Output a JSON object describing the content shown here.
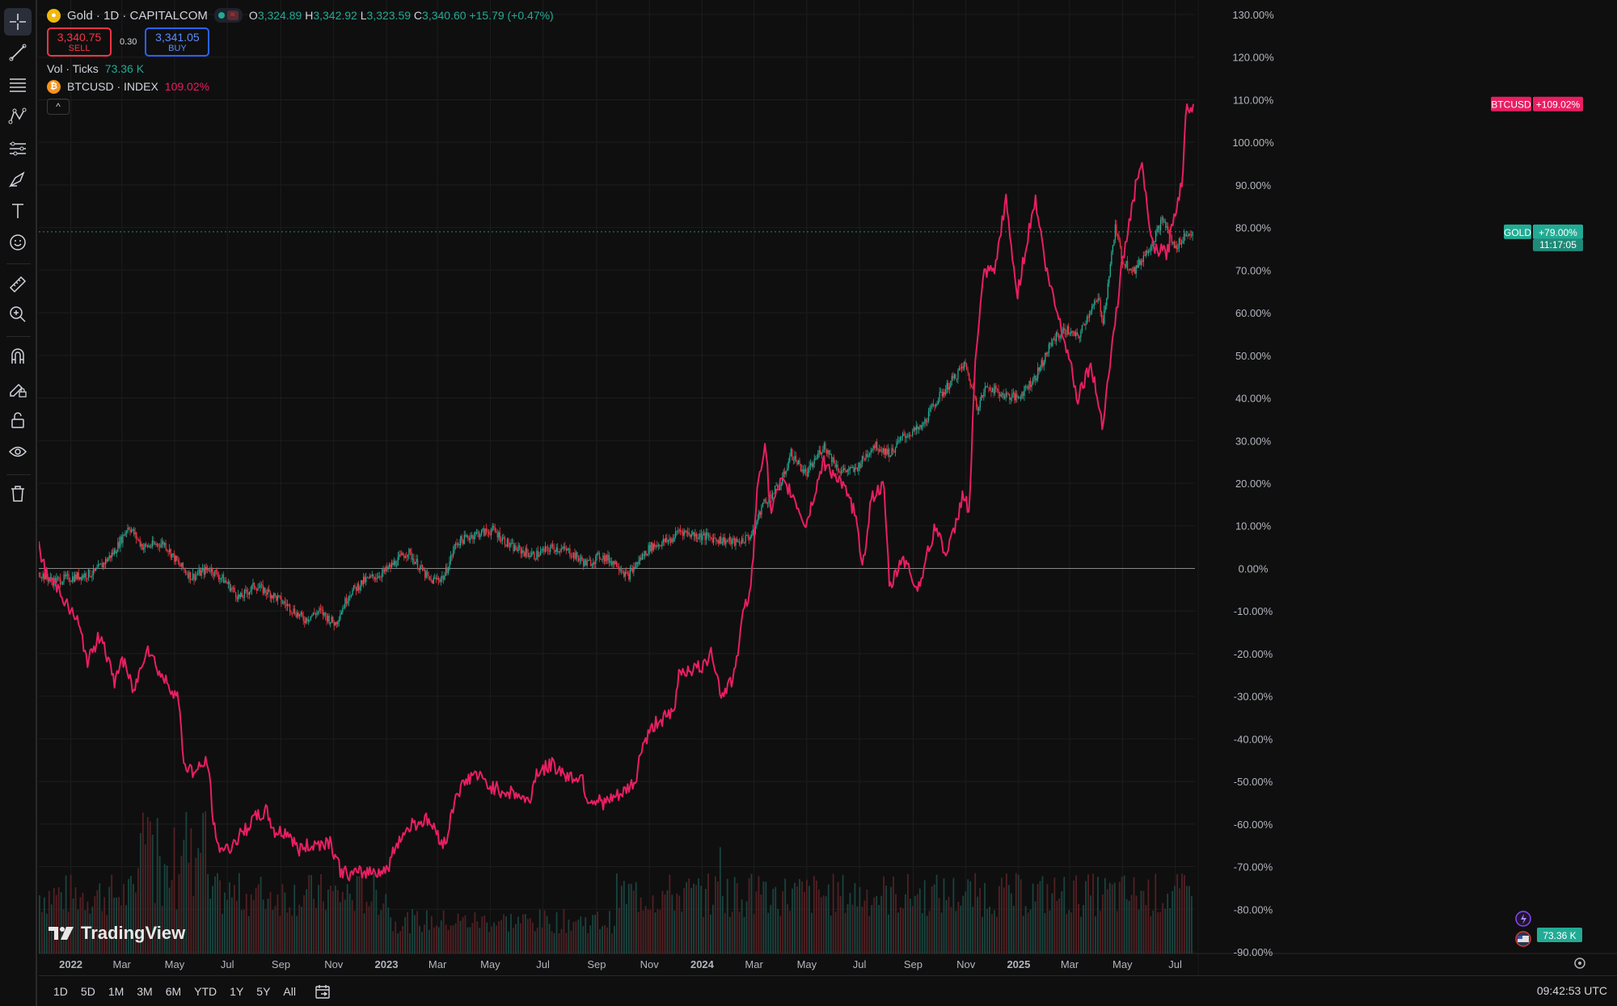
{
  "symbol": {
    "name": "Gold · 1D · CAPITALCOM",
    "open_label": "O",
    "open": "3,324.89",
    "high_label": "H",
    "high": "3,342.92",
    "low_label": "L",
    "low": "3,323.59",
    "close_label": "C",
    "close": "3,340.60",
    "change": "+15.79 (+0.47%)"
  },
  "trade": {
    "sell_price": "3,340.75",
    "sell_label": "SELL",
    "spread": "0.30",
    "buy_price": "3,341.05",
    "buy_label": "BUY"
  },
  "volume": {
    "label": "Vol · Ticks",
    "value": "73.36 K"
  },
  "compare": {
    "label": "BTCUSD · INDEX",
    "value": "109.02%"
  },
  "watermark": "TradingView",
  "ranges": [
    "1D",
    "5D",
    "1M",
    "3M",
    "6M",
    "YTD",
    "1Y",
    "5Y",
    "All"
  ],
  "clock": "09:42:53 UTC",
  "colors": {
    "gold_up": "#22ab94",
    "gold_down": "#f23645",
    "btc": "#e91e63",
    "background": "#0f0f0f",
    "grid": "#1d1d1d"
  },
  "icons": [
    "crosshair-icon",
    "trendline-icon",
    "fib-icon",
    "pattern-icon",
    "prediction-icon",
    "brush-icon",
    "text-icon",
    "emoji-icon",
    "ruler-icon",
    "zoom-in-icon",
    "magnet-icon",
    "lock-drawings-icon",
    "lock-icon",
    "eye-icon",
    "trash-icon"
  ],
  "chart_data": {
    "type": "line",
    "y_axis": {
      "unit": "%",
      "range": [
        -90,
        130
      ],
      "ticks": [
        "130.00%",
        "120.00%",
        "110.00%",
        "100.00%",
        "90.00%",
        "80.00%",
        "70.00%",
        "60.00%",
        "50.00%",
        "40.00%",
        "30.00%",
        "20.00%",
        "10.00%",
        "0.00%",
        "-10.00%",
        "-20.00%",
        "-30.00%",
        "-40.00%",
        "-50.00%",
        "-60.00%",
        "-70.00%",
        "-80.00%",
        "-90.00%"
      ]
    },
    "x_axis": {
      "range": [
        "2021-11-25",
        "2025-07-22"
      ],
      "ticks": [
        {
          "label": "2022",
          "date": "2022-01-01",
          "bold": true
        },
        {
          "label": "Mar",
          "date": "2022-03-01"
        },
        {
          "label": "May",
          "date": "2022-05-01"
        },
        {
          "label": "Jul",
          "date": "2022-07-01"
        },
        {
          "label": "Sep",
          "date": "2022-09-01"
        },
        {
          "label": "Nov",
          "date": "2022-11-01"
        },
        {
          "label": "2023",
          "date": "2023-01-01",
          "bold": true
        },
        {
          "label": "Mar",
          "date": "2023-03-01"
        },
        {
          "label": "May",
          "date": "2023-05-01"
        },
        {
          "label": "Jul",
          "date": "2023-07-01"
        },
        {
          "label": "Sep",
          "date": "2023-09-01"
        },
        {
          "label": "Nov",
          "date": "2023-11-01"
        },
        {
          "label": "2024",
          "date": "2024-01-01",
          "bold": true
        },
        {
          "label": "Mar",
          "date": "2024-03-01"
        },
        {
          "label": "May",
          "date": "2024-05-01"
        },
        {
          "label": "Jul",
          "date": "2024-07-01"
        },
        {
          "label": "Sep",
          "date": "2024-09-01"
        },
        {
          "label": "Nov",
          "date": "2024-11-01"
        },
        {
          "label": "2025",
          "date": "2025-01-01",
          "bold": true
        },
        {
          "label": "Mar",
          "date": "2025-03-01"
        },
        {
          "label": "May",
          "date": "2025-05-01"
        },
        {
          "label": "Jul",
          "date": "2025-07-01"
        }
      ]
    },
    "zero_line": 0,
    "series": [
      {
        "name": "GOLD",
        "style": "candles",
        "color": "#22ab94",
        "last_label": "+79.00%",
        "countdown": "11:17:05",
        "points": [
          [
            "2021-11-25",
            -1
          ],
          [
            "2021-12-10",
            -3
          ],
          [
            "2022-01-05",
            -2
          ],
          [
            "2022-01-28",
            -1
          ],
          [
            "2022-02-20",
            4
          ],
          [
            "2022-03-08",
            10
          ],
          [
            "2022-03-25",
            5
          ],
          [
            "2022-04-18",
            6
          ],
          [
            "2022-05-05",
            1
          ],
          [
            "2022-05-20",
            -2
          ],
          [
            "2022-06-10",
            0
          ],
          [
            "2022-06-28",
            -3
          ],
          [
            "2022-07-15",
            -7
          ],
          [
            "2022-08-01",
            -4
          ],
          [
            "2022-08-20",
            -6
          ],
          [
            "2022-09-10",
            -9
          ],
          [
            "2022-09-27",
            -12
          ],
          [
            "2022-10-15",
            -10
          ],
          [
            "2022-11-02",
            -13
          ],
          [
            "2022-11-18",
            -6
          ],
          [
            "2022-12-05",
            -3
          ],
          [
            "2022-12-28",
            -1
          ],
          [
            "2023-01-25",
            4
          ],
          [
            "2023-02-20",
            -3
          ],
          [
            "2023-03-08",
            -2
          ],
          [
            "2023-03-22",
            6
          ],
          [
            "2023-04-12",
            8
          ],
          [
            "2023-05-04",
            9
          ],
          [
            "2023-05-25",
            5
          ],
          [
            "2023-06-20",
            3
          ],
          [
            "2023-07-12",
            5
          ],
          [
            "2023-07-30",
            4
          ],
          [
            "2023-08-20",
            1
          ],
          [
            "2023-09-05",
            3
          ],
          [
            "2023-09-25",
            1
          ],
          [
            "2023-10-06",
            -2
          ],
          [
            "2023-10-20",
            2
          ],
          [
            "2023-11-01",
            5
          ],
          [
            "2023-11-28",
            7
          ],
          [
            "2023-12-04",
            9
          ],
          [
            "2023-12-20",
            8
          ],
          [
            "2024-01-15",
            7
          ],
          [
            "2024-02-10",
            6
          ],
          [
            "2024-02-28",
            8
          ],
          [
            "2024-03-10",
            15
          ],
          [
            "2024-04-01",
            20
          ],
          [
            "2024-04-12",
            27
          ],
          [
            "2024-04-30",
            22
          ],
          [
            "2024-05-20",
            29
          ],
          [
            "2024-06-07",
            23
          ],
          [
            "2024-06-25",
            23
          ],
          [
            "2024-07-17",
            29
          ],
          [
            "2024-08-05",
            27
          ],
          [
            "2024-08-20",
            31
          ],
          [
            "2024-09-10",
            33
          ],
          [
            "2024-09-26",
            39
          ],
          [
            "2024-10-15",
            44
          ],
          [
            "2024-10-30",
            48
          ],
          [
            "2024-11-14",
            38
          ],
          [
            "2024-11-25",
            43
          ],
          [
            "2024-12-10",
            41
          ],
          [
            "2024-12-30",
            40
          ],
          [
            "2025-01-20",
            45
          ],
          [
            "2025-02-10",
            54
          ],
          [
            "2025-02-25",
            56
          ],
          [
            "2025-03-10",
            54
          ],
          [
            "2025-03-25",
            61
          ],
          [
            "2025-04-03",
            63
          ],
          [
            "2025-04-08",
            58
          ],
          [
            "2025-04-22",
            80
          ],
          [
            "2025-05-01",
            72
          ],
          [
            "2025-05-15",
            70
          ],
          [
            "2025-06-05",
            77
          ],
          [
            "2025-06-16",
            82
          ],
          [
            "2025-06-30",
            75
          ],
          [
            "2025-07-10",
            78
          ],
          [
            "2025-07-22",
            79
          ]
        ]
      },
      {
        "name": "BTCUSD",
        "style": "line",
        "color": "#e91e63",
        "last_label": "+109.02%",
        "points": [
          [
            "2021-11-25",
            5
          ],
          [
            "2021-12-05",
            -2
          ],
          [
            "2021-12-20",
            -5
          ],
          [
            "2021-12-28",
            -9
          ],
          [
            "2022-01-08",
            -12
          ],
          [
            "2022-01-21",
            -22
          ],
          [
            "2022-02-05",
            -15
          ],
          [
            "2022-02-20",
            -27
          ],
          [
            "2022-03-01",
            -21
          ],
          [
            "2022-03-15",
            -29
          ],
          [
            "2022-03-30",
            -18
          ],
          [
            "2022-04-15",
            -25
          ],
          [
            "2022-05-05",
            -30
          ],
          [
            "2022-05-12",
            -46
          ],
          [
            "2022-05-25",
            -48
          ],
          [
            "2022-06-08",
            -45
          ],
          [
            "2022-06-18",
            -65
          ],
          [
            "2022-07-01",
            -66
          ],
          [
            "2022-07-15",
            -63
          ],
          [
            "2022-07-31",
            -59
          ],
          [
            "2022-08-15",
            -57
          ],
          [
            "2022-08-25",
            -62
          ],
          [
            "2022-09-10",
            -62
          ],
          [
            "2022-09-20",
            -66
          ],
          [
            "2022-10-05",
            -65
          ],
          [
            "2022-10-28",
            -64
          ],
          [
            "2022-11-09",
            -71
          ],
          [
            "2022-11-21",
            -72
          ],
          [
            "2022-12-15",
            -71
          ],
          [
            "2023-01-01",
            -71
          ],
          [
            "2023-01-14",
            -64
          ],
          [
            "2023-01-30",
            -60
          ],
          [
            "2023-02-18",
            -59
          ],
          [
            "2023-03-10",
            -65
          ],
          [
            "2023-03-22",
            -53
          ],
          [
            "2023-04-12",
            -48
          ],
          [
            "2023-04-30",
            -51
          ],
          [
            "2023-05-12",
            -52
          ],
          [
            "2023-06-01",
            -53
          ],
          [
            "2023-06-15",
            -55
          ],
          [
            "2023-06-23",
            -48
          ],
          [
            "2023-07-12",
            -46
          ],
          [
            "2023-07-31",
            -49
          ],
          [
            "2023-08-16",
            -49
          ],
          [
            "2023-08-20",
            -54
          ],
          [
            "2023-09-11",
            -55
          ],
          [
            "2023-10-01",
            -53
          ],
          [
            "2023-10-16",
            -50
          ],
          [
            "2023-10-23",
            -42
          ],
          [
            "2023-11-09",
            -36
          ],
          [
            "2023-11-30",
            -34
          ],
          [
            "2023-12-05",
            -24
          ],
          [
            "2023-12-10",
            -24
          ],
          [
            "2024-01-05",
            -23
          ],
          [
            "2024-01-11",
            -18
          ],
          [
            "2024-01-23",
            -30
          ],
          [
            "2024-02-08",
            -25
          ],
          [
            "2024-02-15",
            -13
          ],
          [
            "2024-02-26",
            -4
          ],
          [
            "2024-02-29",
            2
          ],
          [
            "2024-03-05",
            20
          ],
          [
            "2024-03-14",
            30
          ],
          [
            "2024-03-20",
            13
          ],
          [
            "2024-04-01",
            20
          ],
          [
            "2024-04-13",
            18
          ],
          [
            "2024-04-30",
            10
          ],
          [
            "2024-05-20",
            25
          ],
          [
            "2024-06-07",
            21
          ],
          [
            "2024-06-24",
            14
          ],
          [
            "2024-07-05",
            1
          ],
          [
            "2024-07-15",
            17
          ],
          [
            "2024-07-29",
            19
          ],
          [
            "2024-08-05",
            -5
          ],
          [
            "2024-08-20",
            3
          ],
          [
            "2024-09-06",
            -5
          ],
          [
            "2024-09-27",
            10
          ],
          [
            "2024-10-10",
            3
          ],
          [
            "2024-10-20",
            10
          ],
          [
            "2024-10-29",
            18
          ],
          [
            "2024-11-05",
            13
          ],
          [
            "2024-11-12",
            50
          ],
          [
            "2024-11-22",
            69
          ],
          [
            "2024-12-05",
            70
          ],
          [
            "2024-12-17",
            87
          ],
          [
            "2024-12-30",
            64
          ],
          [
            "2025-01-20",
            87
          ],
          [
            "2025-02-03",
            69
          ],
          [
            "2025-02-28",
            50
          ],
          [
            "2025-03-10",
            40
          ],
          [
            "2025-03-25",
            48
          ],
          [
            "2025-04-08",
            34
          ],
          [
            "2025-04-22",
            57
          ],
          [
            "2025-05-01",
            72
          ],
          [
            "2025-05-22",
            96
          ],
          [
            "2025-06-05",
            75
          ],
          [
            "2025-06-22",
            74
          ],
          [
            "2025-06-30",
            83
          ],
          [
            "2025-07-09",
            91
          ],
          [
            "2025-07-14",
            108
          ],
          [
            "2025-07-22",
            109
          ]
        ]
      }
    ],
    "volume_series": {
      "name": "Vol · Ticks",
      "last_label": "73.36 K"
    }
  }
}
